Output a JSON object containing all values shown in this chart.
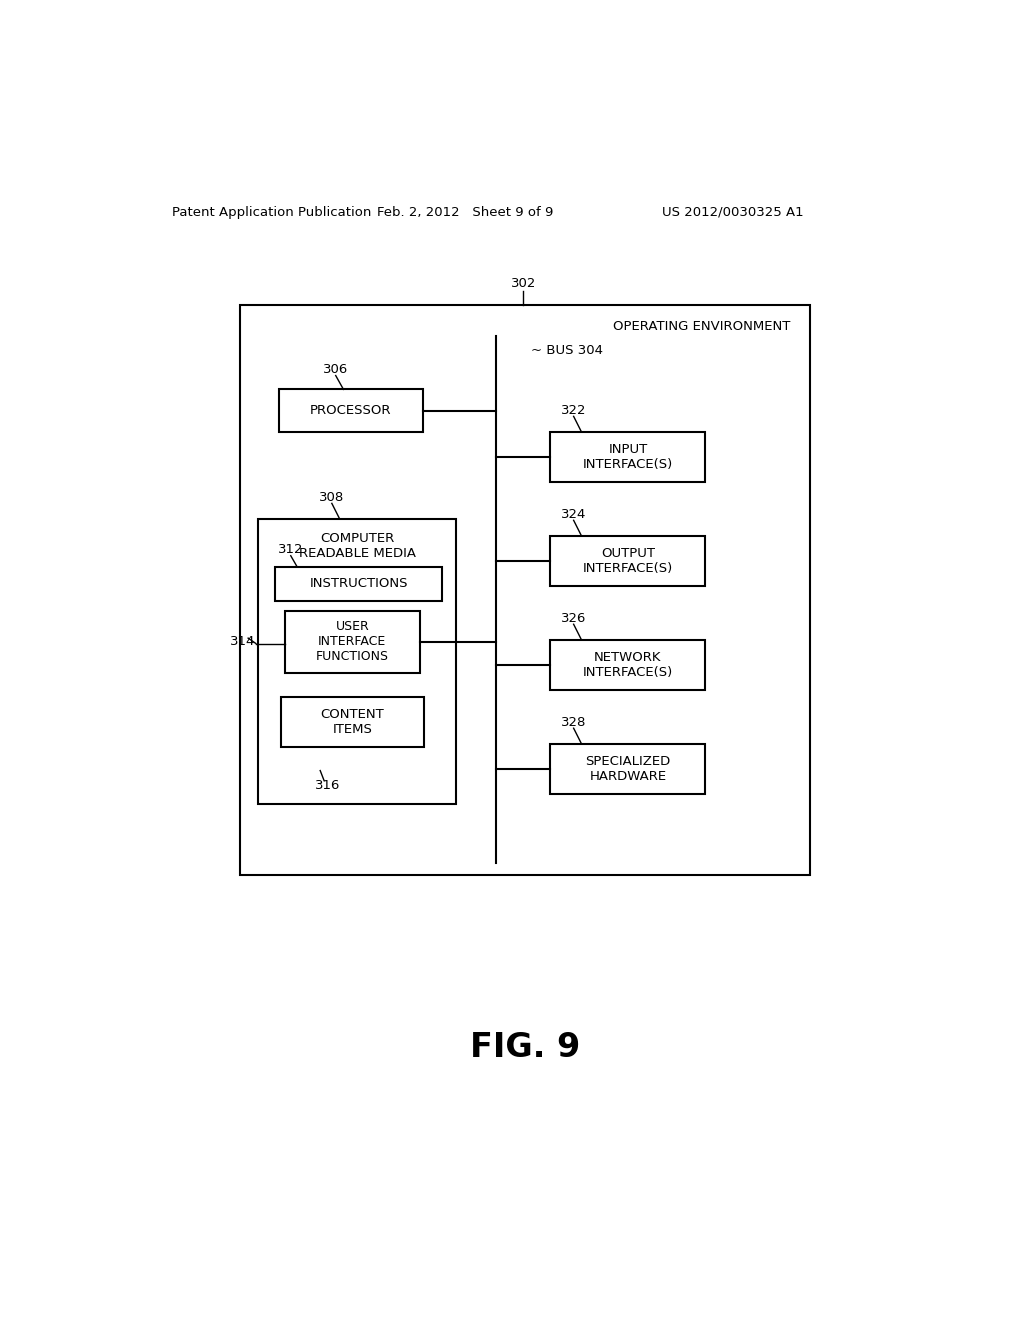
{
  "bg_color": "#ffffff",
  "header_left": "Patent Application Publication",
  "header_mid": "Feb. 2, 2012   Sheet 9 of 9",
  "header_right": "US 2012/0030325 A1",
  "fig_label": "FIG. 9",
  "outer_box_label": "OPERATING ENVIRONMENT",
  "bus_label": "~ BUS 304",
  "num_302": "302",
  "num_306": "306",
  "num_308": "308",
  "num_312": "312",
  "num_314": "314",
  "num_316": "316",
  "num_322": "322",
  "num_324": "324",
  "num_326": "326",
  "num_328": "328",
  "label_processor": "PROCESSOR",
  "label_crm": "COMPUTER\nREADABLE MEDIA",
  "label_instructions": "INSTRUCTIONS",
  "label_uif": "USER\nINTERFACE\nFUNCTIONS",
  "label_content": "CONTENT\nITEMS",
  "label_input": "INPUT\nINTERFACE(S)",
  "label_output": "OUTPUT\nINTERFACE(S)",
  "label_network": "NETWORK\nINTERFACE(S)",
  "label_spec_hw": "SPECIALIZED\nHARDWARE"
}
